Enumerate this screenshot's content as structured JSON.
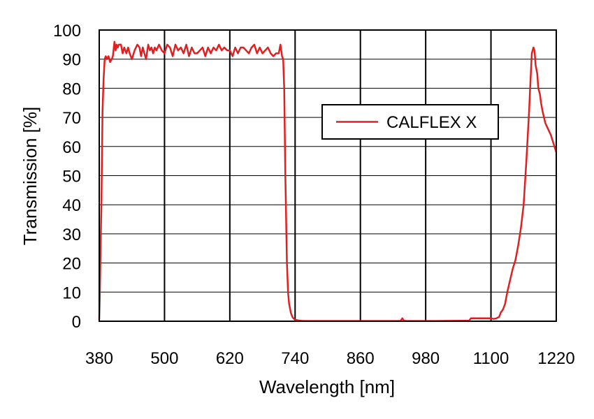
{
  "chart_data": {
    "type": "line",
    "xlabel": "Wavelength [nm]",
    "ylabel": "Transmission [%]",
    "xlim": [
      380,
      1220
    ],
    "ylim": [
      0,
      100
    ],
    "x_ticks": [
      380,
      500,
      620,
      740,
      860,
      980,
      1100,
      1220
    ],
    "y_ticks": [
      0,
      10,
      20,
      30,
      40,
      50,
      60,
      70,
      80,
      90,
      100
    ],
    "grid": true,
    "legend_position": "center-right",
    "series": [
      {
        "name": "CALFLEX X",
        "color": "#e02020",
        "x": [
          380,
          381,
          382,
          383,
          384,
          386,
          388,
          390,
          392,
          394,
          397,
          400,
          403,
          405,
          408,
          410,
          412,
          414,
          416,
          418,
          420,
          423,
          426,
          430,
          433,
          436,
          440,
          445,
          450,
          454,
          457,
          460,
          463,
          466,
          470,
          473,
          476,
          479,
          482,
          485,
          490,
          495,
          500,
          505,
          510,
          515,
          520,
          525,
          530,
          535,
          540,
          545,
          550,
          555,
          560,
          565,
          570,
          575,
          580,
          585,
          590,
          595,
          600,
          605,
          610,
          615,
          620,
          625,
          630,
          635,
          640,
          645,
          650,
          655,
          660,
          665,
          670,
          675,
          680,
          685,
          690,
          695,
          700,
          705,
          710,
          713,
          716,
          718,
          720,
          721,
          722,
          723,
          724,
          725,
          726,
          727,
          728,
          729,
          730,
          731,
          732,
          733,
          734,
          735,
          737,
          740,
          745,
          750,
          755,
          760,
          800,
          850,
          900,
          930,
          934,
          937,
          940,
          945,
          1000,
          1050,
          1060,
          1063,
          1080,
          1095,
          1100,
          1105,
          1110,
          1115,
          1118,
          1122,
          1126,
          1130,
          1135,
          1140,
          1145,
          1150,
          1155,
          1160,
          1165,
          1170,
          1172,
          1175,
          1178,
          1180,
          1182,
          1185,
          1187,
          1190,
          1192,
          1195,
          1200,
          1205,
          1210,
          1215,
          1220
        ],
        "y": [
          0.5,
          8,
          20,
          30,
          40,
          72,
          83,
          90,
          91,
          90,
          91,
          89,
          90,
          91,
          96,
          93,
          95,
          94,
          95,
          95,
          95,
          92,
          94,
          92,
          94,
          92,
          90,
          93,
          95,
          94,
          91,
          94,
          92,
          90,
          95,
          93,
          94,
          92,
          94,
          93,
          95,
          93,
          92,
          95,
          94,
          91,
          95,
          93,
          94,
          92,
          95,
          91,
          94,
          92,
          92,
          93,
          94,
          91,
          94,
          92,
          94,
          93,
          95,
          93,
          94,
          93,
          93,
          91,
          94,
          92,
          94,
          94,
          93,
          92,
          94,
          95,
          92,
          94,
          92,
          93,
          94,
          92,
          91,
          92,
          92,
          95,
          91,
          90,
          80,
          65,
          50,
          40,
          30,
          20,
          15,
          10,
          8,
          6,
          5,
          4,
          3,
          2.5,
          2,
          1.5,
          1,
          0.5,
          0.3,
          0.2,
          0.1,
          0.1,
          0.1,
          0.1,
          0.1,
          0.1,
          0.1,
          1.0,
          0.2,
          0.1,
          0.1,
          0.2,
          0.2,
          1.0,
          1.0,
          1.0,
          1.0,
          0.8,
          1.0,
          1.5,
          3,
          4,
          6,
          10,
          14,
          18,
          21,
          26,
          32,
          40,
          55,
          72,
          80,
          92,
          94,
          93,
          88,
          85,
          80,
          78,
          75,
          72,
          68,
          66,
          64,
          61,
          58
        ]
      }
    ]
  }
}
